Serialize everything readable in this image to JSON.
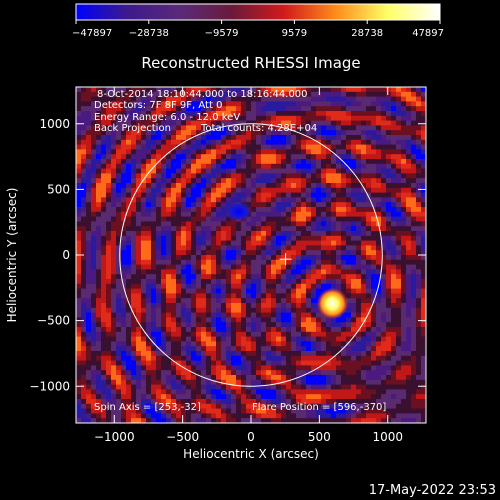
{
  "chart_data": {
    "type": "heatmap",
    "title": "Reconstructed RHESSI Image",
    "xlabel": "Heliocentric X (arcsec)",
    "ylabel": "Heliocentric Y (arcsec)",
    "xlim": [
      -1280,
      1280
    ],
    "ylim": [
      -1280,
      1280
    ],
    "x_ticks": [
      -1000,
      -500,
      0,
      500,
      1000
    ],
    "y_ticks": [
      -1000,
      -500,
      0,
      500,
      1000
    ],
    "x_tick_labels": [
      "−1000",
      "−500",
      "0",
      "500",
      "1000"
    ],
    "y_tick_labels": [
      "−1000",
      "−500",
      "0",
      "500",
      "1000"
    ],
    "colorbar": {
      "min": -47897,
      "max": 47897,
      "ticks": [
        -47897,
        -28738,
        -9579,
        9579,
        28738,
        47897
      ],
      "tick_labels": [
        "−47897",
        "−28738",
        "−9579",
        "9579",
        "28738",
        "47897"
      ],
      "colormap": [
        "#0000ff",
        "#3d1a8a",
        "#5a2a7a",
        "#6a1a3a",
        "#d21a1a",
        "#ff8c1a",
        "#ffff66",
        "#ffffff"
      ]
    },
    "annotations": [
      "8-Oct-2014 18:10:44.000 to 18:16:44.000",
      "Detectors: 7F 8F 9F, Att 0",
      "Energy Range: 6.0 - 12.0 keV",
      "Back Projection",
      "Total counts: 4.28E+04"
    ],
    "spin_axis_label": "Spin Axis = [253,-32]",
    "spin_axis": [
      253,
      -32
    ],
    "flare_position_label": "Flare Position = [596,-370]",
    "flare_position": [
      596,
      -370
    ],
    "solar_limb_radius_arcsec": 960,
    "sources": [
      {
        "kind": "positive-peak",
        "x": 596,
        "y": -370,
        "value": 47897
      },
      {
        "kind": "negative-peak",
        "x": -90,
        "y": 330,
        "value": -47897
      }
    ],
    "grid": false
  },
  "footer": {
    "date": "17-May-2022 23:53"
  }
}
